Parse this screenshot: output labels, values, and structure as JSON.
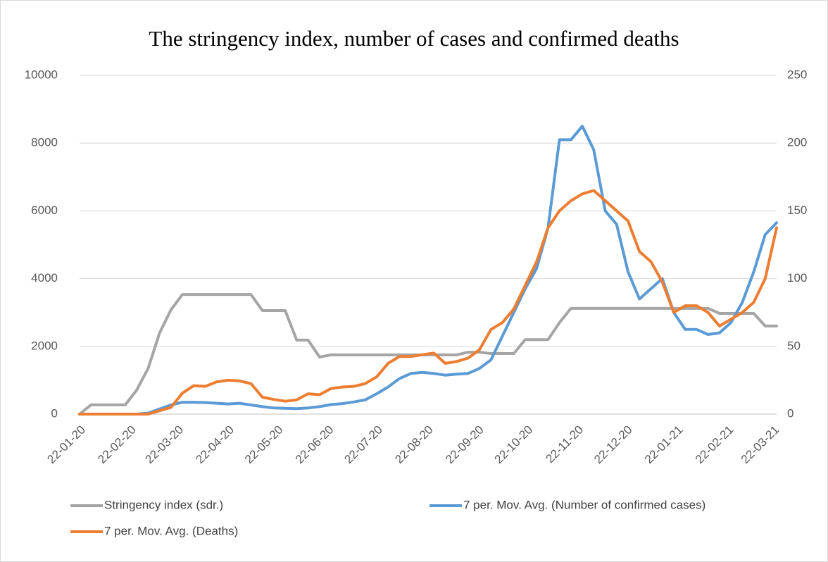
{
  "chart_data": {
    "type": "line",
    "title": "The stringency index, number of cases and confirmed deaths",
    "x": [
      "22-01-20",
      "29-01-20",
      "05-02-20",
      "12-02-20",
      "19-02-20",
      "26-02-20",
      "04-03-20",
      "11-03-20",
      "18-03-20",
      "25-03-20",
      "01-04-20",
      "08-04-20",
      "15-04-20",
      "22-04-20",
      "29-04-20",
      "06-05-20",
      "13-05-20",
      "20-05-20",
      "27-05-20",
      "03-06-20",
      "10-06-20",
      "17-06-20",
      "24-06-20",
      "01-07-20",
      "08-07-20",
      "15-07-20",
      "22-07-20",
      "29-07-20",
      "05-08-20",
      "12-08-20",
      "19-08-20",
      "26-08-20",
      "02-09-20",
      "09-09-20",
      "16-09-20",
      "23-09-20",
      "30-09-20",
      "07-10-20",
      "14-10-20",
      "21-10-20",
      "28-10-20",
      "04-11-20",
      "11-11-20",
      "18-11-20",
      "25-11-20",
      "02-12-20",
      "09-12-20",
      "16-12-20",
      "23-12-20",
      "30-12-20",
      "06-01-21",
      "13-01-21",
      "20-01-21",
      "27-01-21",
      "03-02-21",
      "10-02-21",
      "17-02-21",
      "24-02-21",
      "03-03-21",
      "10-03-21",
      "17-03-21",
      "24-03-21"
    ],
    "xlim": [
      "22-01-20",
      "24-03-21"
    ],
    "xticks": [
      "22-01-20",
      "22-02-20",
      "22-03-20",
      "22-04-20",
      "22-05-20",
      "22-06-20",
      "22-07-20",
      "22-08-20",
      "22-09-20",
      "22-10-20",
      "22-11-20",
      "22-12-20",
      "22-01-21",
      "22-02-21",
      "22-03-21"
    ],
    "ylim": [
      0,
      10000
    ],
    "yticks": [
      0,
      2000,
      4000,
      6000,
      8000,
      10000
    ],
    "y2lim": [
      0,
      250
    ],
    "y2ticks": [
      0,
      50,
      100,
      150,
      200,
      250
    ],
    "grid": true,
    "legend": "bottom",
    "series": [
      {
        "name": "Stringency index (sdr.)",
        "color": "#a5a5a5",
        "axis": "y2",
        "values": [
          0,
          6.8,
          6.8,
          6.8,
          6.8,
          17.7,
          33.8,
          59.8,
          77,
          88.3,
          88.3,
          88.3,
          88.3,
          88.3,
          88.3,
          88.3,
          76.4,
          76.4,
          76.4,
          54.6,
          54.6,
          42.1,
          43.7,
          43.7,
          43.7,
          43.7,
          43.7,
          43.7,
          43.7,
          43.7,
          43.7,
          43.7,
          43.7,
          43.7,
          45.7,
          45.7,
          44.7,
          44.7,
          44.7,
          55,
          55,
          55,
          67.5,
          78,
          78,
          78,
          78,
          78,
          78,
          78,
          78,
          78,
          78,
          78,
          78,
          78,
          74.3,
          74.3,
          74.3,
          74.3,
          65,
          65
        ]
      },
      {
        "name": "7 per. Mov. Avg. (Number of confirmed cases)",
        "color": "#5b9bd5",
        "values": [
          0,
          0,
          0,
          0,
          0,
          0,
          30,
          150,
          270,
          350,
          350,
          340,
          320,
          300,
          320,
          270,
          220,
          180,
          170,
          160,
          180,
          220,
          280,
          310,
          360,
          420,
          600,
          800,
          1050,
          1200,
          1230,
          1200,
          1150,
          1180,
          1200,
          1350,
          1600,
          2300,
          3000,
          3700,
          4300,
          5500,
          8100,
          8100,
          8500,
          7800,
          6000,
          5600,
          4200,
          3400,
          3700,
          4000,
          3000,
          2500,
          2500,
          2350,
          2400,
          2700,
          3300,
          4200,
          5300,
          5650
        ]
      },
      {
        "name": "7 per. Mov. Avg. (Deaths)",
        "color": "#ed7d31",
        "axis": "y2",
        "values": [
          0,
          0,
          0,
          0,
          0,
          0,
          0,
          2.5,
          5,
          15.5,
          21,
          20.5,
          23.8,
          25,
          24.5,
          22.5,
          12.5,
          10.8,
          9.5,
          10.5,
          15,
          14.3,
          18.8,
          20,
          20.5,
          22.5,
          27.5,
          37.5,
          42.5,
          42.5,
          43.8,
          45,
          37.5,
          38.8,
          41.3,
          47.5,
          62.5,
          67.5,
          77.5,
          95,
          112.5,
          137.5,
          150,
          157.5,
          162.5,
          165,
          157.5,
          150,
          142.5,
          120,
          112.5,
          97.5,
          75,
          80,
          80,
          75,
          65,
          70,
          75,
          82.5,
          100,
          137.5
        ]
      }
    ]
  }
}
